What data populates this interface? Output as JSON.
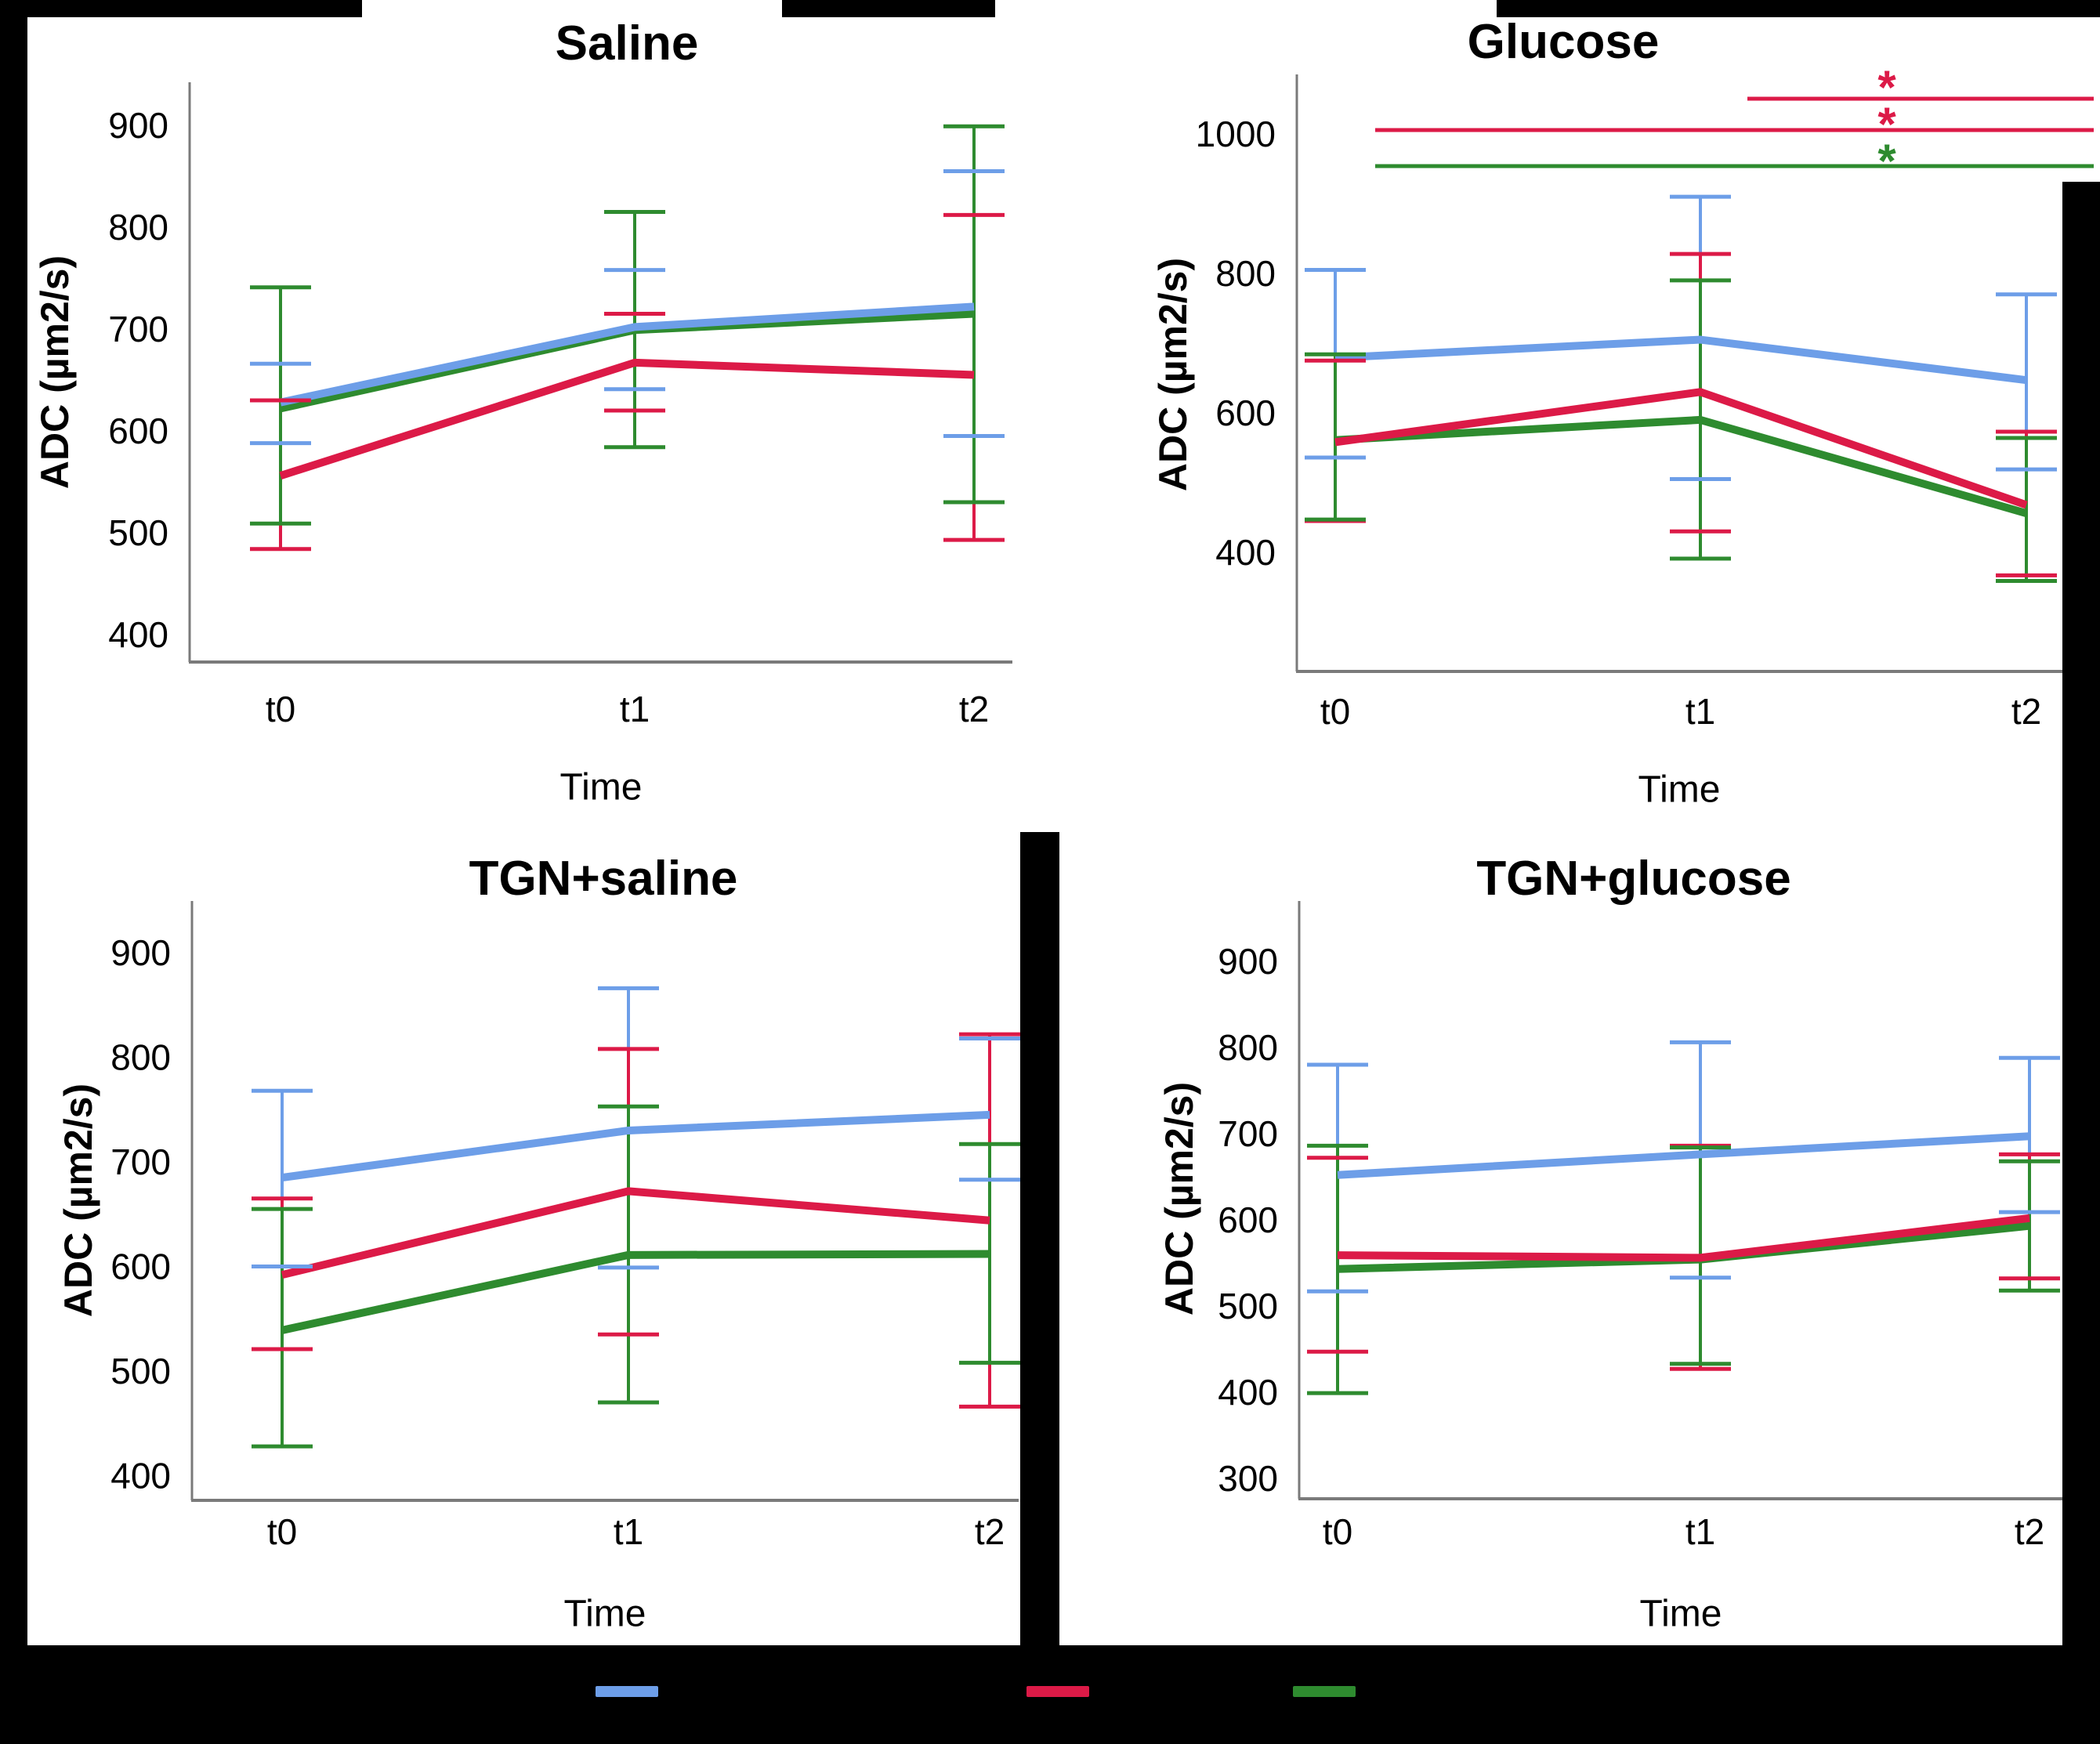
{
  "figure": {
    "background_color": "#000000",
    "panel_background_color": "#ffffff",
    "axis_color": "#7a7a7a"
  },
  "legend": {
    "swatches": [
      {
        "name": "blue-series",
        "color": "#6D9EE8"
      },
      {
        "name": "red-series",
        "color": "#DC1A47"
      },
      {
        "name": "green-series",
        "color": "#2E8B2F"
      }
    ]
  },
  "chart_data": [
    {
      "id": "saline",
      "type": "line",
      "title": "Saline",
      "ylabel": "ADC (µm2/s)",
      "xlabel": "Time",
      "categories": [
        "t0",
        "t1",
        "t2"
      ],
      "yticks": [
        900,
        800,
        700,
        600,
        500,
        400
      ],
      "ylim": [
        370,
        940
      ],
      "grid": false,
      "series": [
        {
          "name": "blue",
          "color": "#6D9EE8",
          "values": [
            628,
            702,
            722
          ],
          "err_lo": [
            588,
            641,
            595
          ],
          "err_hi": [
            666,
            758,
            855
          ]
        },
        {
          "name": "red",
          "color": "#DC1A47",
          "values": [
            556,
            667,
            655
          ],
          "err_lo": [
            484,
            620,
            493
          ],
          "err_hi": [
            630,
            715,
            812
          ]
        },
        {
          "name": "green",
          "color": "#2E8B2F",
          "values": [
            622,
            699,
            715
          ],
          "err_lo": [
            509,
            584,
            530
          ],
          "err_hi": [
            741,
            815,
            899
          ]
        }
      ]
    },
    {
      "id": "glucose",
      "type": "line",
      "title": "Glucose",
      "ylabel": "ADC (µm2/s)",
      "xlabel": "Time",
      "categories": [
        "t0",
        "t1",
        "t2"
      ],
      "yticks": [
        1000,
        800,
        600,
        400
      ],
      "ylim": [
        230,
        1030
      ],
      "grid": false,
      "series": [
        {
          "name": "blue",
          "color": "#6D9EE8",
          "values": [
            679,
            705,
            647
          ],
          "err_lo": [
            536,
            505,
            519
          ],
          "err_hi": [
            805,
            910,
            770
          ]
        },
        {
          "name": "red",
          "color": "#DC1A47",
          "values": [
            558,
            630,
            468
          ],
          "err_lo": [
            445,
            430,
            367
          ],
          "err_hi": [
            675,
            828,
            573
          ]
        },
        {
          "name": "green",
          "color": "#2E8B2F",
          "values": [
            561,
            590,
            456
          ],
          "err_lo": [
            447,
            391,
            359
          ],
          "err_hi": [
            684,
            790,
            564
          ]
        }
      ],
      "significance": [
        {
          "color": "#DC1A47",
          "symbol": "*",
          "span": [
            "t1",
            "t2"
          ]
        },
        {
          "color": "#DC1A47",
          "symbol": "*",
          "span": [
            "t0",
            "t2"
          ]
        },
        {
          "color": "#2E8B2F",
          "symbol": "*",
          "span": [
            "t0",
            "t2"
          ]
        }
      ]
    },
    {
      "id": "tgn-saline",
      "type": "line",
      "title": "TGN+saline",
      "ylabel": "ADC (µm2/s)",
      "xlabel": "Time",
      "categories": [
        "t0",
        "t1",
        "t2"
      ],
      "yticks": [
        900,
        800,
        700,
        600,
        500,
        400
      ],
      "ylim": [
        370,
        950
      ],
      "grid": false,
      "series": [
        {
          "name": "blue",
          "color": "#6D9EE8",
          "values": [
            685,
            730,
            745
          ],
          "err_lo": [
            600,
            599,
            683
          ],
          "err_hi": [
            768,
            866,
            818
          ]
        },
        {
          "name": "red",
          "color": "#DC1A47",
          "values": [
            592,
            672,
            644
          ],
          "err_lo": [
            521,
            535,
            466
          ],
          "err_hi": [
            665,
            808,
            822
          ]
        },
        {
          "name": "green",
          "color": "#2E8B2F",
          "values": [
            539,
            611,
            612
          ],
          "err_lo": [
            428,
            470,
            508
          ],
          "err_hi": [
            655,
            753,
            717
          ]
        }
      ]
    },
    {
      "id": "tgn-glucose",
      "type": "line",
      "title": "TGN+glucose",
      "ylabel": "ADC (µm2/s)",
      "xlabel": "Time",
      "categories": [
        "t0",
        "t1",
        "t2"
      ],
      "yticks": [
        900,
        800,
        700,
        600,
        500,
        400,
        300
      ],
      "ylim": [
        280,
        960
      ],
      "grid": false,
      "series": [
        {
          "name": "blue",
          "color": "#6D9EE8",
          "values": [
            652,
            676,
            697
          ],
          "err_lo": [
            517,
            533,
            609
          ],
          "err_hi": [
            780,
            806,
            788
          ]
        },
        {
          "name": "red",
          "color": "#DC1A47",
          "values": [
            559,
            556,
            602
          ],
          "err_lo": [
            447,
            427,
            532
          ],
          "err_hi": [
            672,
            686,
            676
          ]
        },
        {
          "name": "green",
          "color": "#2E8B2F",
          "values": [
            543,
            554,
            593
          ],
          "err_lo": [
            399,
            433,
            518
          ],
          "err_hi": [
            686,
            684,
            668
          ]
        }
      ]
    }
  ]
}
